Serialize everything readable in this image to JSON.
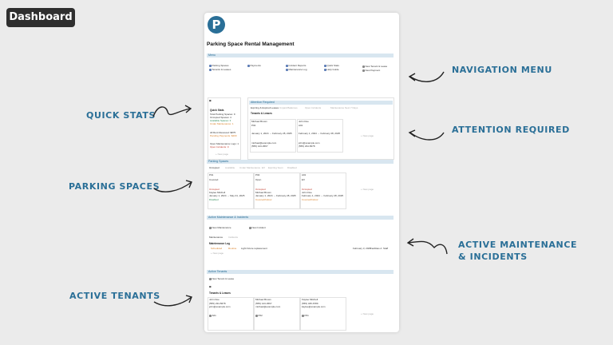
{
  "dashboard_badge": "Dashboard",
  "labels": {
    "quick_stats": "QUICK STATS",
    "navigation_menu": "NAVIGATION MENU",
    "attention_required": "ATTENTION REQUIRED",
    "parking_spaces": "PARKING SPACES",
    "active_maintenance_1": "ACTIVE MAINTENANCE",
    "active_maintenance_2": "& INCIDENTS",
    "active_tenants": "ACTIVE TENANTS"
  },
  "page": {
    "logo_letter": "P",
    "title": "Parking Space Rental Management",
    "menu_bar": "Menu",
    "menu": {
      "col1": [
        "Parking Spaces",
        "Tenants & Leases"
      ],
      "col2": [
        "Payments"
      ],
      "col3": [
        "Incident Reports",
        "Maintenance Log"
      ],
      "col4": [
        "Quick Stats",
        "Help Guide"
      ],
      "col5": [
        "New Tenant & Lease",
        "New Payment"
      ]
    },
    "quick_stats": {
      "header": "Quick Stats",
      "lines": [
        "Total Parking Spaces: 9",
        "Occupied Spaces: 4",
        "Available Spaces: 3",
        "Under Maintenance: 1"
      ],
      "money": [
        "All Rent Received: $875",
        "Pending Payments: $400"
      ],
      "issues": [
        "Open Maintenance Logs: 1",
        "Open Incidents: 0"
      ],
      "new_page": "+ New page"
    },
    "attention": {
      "bar": "Attention Required",
      "tabs": [
        "Expiring & Expired Leases",
        "Unpaid Balances",
        "Open Incidents",
        "Maintenance Next 7 Days"
      ],
      "heading": "Tenants & Leases",
      "tenants": [
        {
          "name": "Michael Brown",
          "space": "P02",
          "dates": "January 1, 2024 → February 28, 2025",
          "email": "michael@example.com",
          "phone": "(555) 123-4567"
        },
        {
          "name": "John Doe",
          "space": "A01",
          "dates": "February 1, 2024 → February 28, 2025",
          "email": "john@example.com",
          "phone": "(555) 234-5678"
        }
      ],
      "new_page": "+ New page"
    },
    "parking": {
      "bar": "Parking Spaces",
      "tabs": [
        "Occupied",
        "Available",
        "Under Maintenance",
        "EV",
        "Expiring Soon",
        "Disabled"
      ],
      "cards": [
        {
          "id": "P01",
          "type": "Covered",
          "status": "Occupied",
          "tenant": "Kaylee Mitchell",
          "dates": "January 1, 2024 → May 31, 2025",
          "flag": "Disabled"
        },
        {
          "id": "P02",
          "type": "Open",
          "status": "Occupied",
          "tenant": "Michael Brown",
          "dates": "January 1, 2024 → February 28, 2025",
          "flag": "Covered/Indoor"
        },
        {
          "id": "A01",
          "type": "EV",
          "status": "Occupied",
          "tenant": "John Doe",
          "dates": "February 1, 2024 → February 28, 2025",
          "flag": "Covered/Indoor"
        }
      ],
      "new_page": "+ New page"
    },
    "maintenance": {
      "bar": "Active Maintenance & Incidents",
      "buttons": [
        "New Maintenance",
        "New Incident"
      ],
      "tabs": [
        "Maintenance",
        "Incidents"
      ],
      "heading": "Maintenance Log",
      "row": {
        "status": "Scheduled",
        "priority": "Routine",
        "task": "Light fixture replacement",
        "date": "February 3, 2025",
        "space": "Facilities A",
        "who": "Staff"
      },
      "new_page": "+ New page"
    },
    "tenants": {
      "bar": "Active Tenants",
      "button": "New Tenant & Lease",
      "heading": "Tenants & Leases",
      "cards": [
        {
          "name": "John Doe",
          "phone": "(555) 234-5678",
          "email": "john@example.com",
          "space": "A01"
        },
        {
          "name": "Michael Brown",
          "phone": "(555) 123-4567",
          "email": "michael@example.com",
          "space": "P02"
        },
        {
          "name": "Kaylee Mitchell",
          "phone": "(555) 345-6789",
          "email": "kaylee@example.com",
          "space": "P01"
        }
      ],
      "new_page": "+ New page"
    }
  }
}
